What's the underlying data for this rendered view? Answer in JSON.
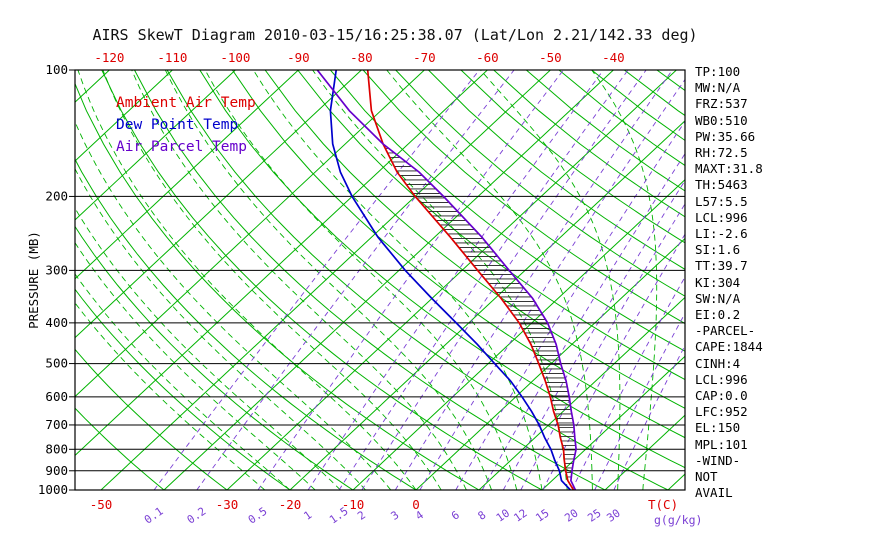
{
  "title": "AIRS SkewT Diagram 2010-03-15/16:25:38.07 (Lat/Lon 2.21/142.33 deg)",
  "colors": {
    "temp": "#dd0000",
    "dewpoint": "#0000cc",
    "parcel": "#6600cc",
    "green": "#00b300",
    "purple_lines": "#7a3fd4",
    "hatch": "#1a1a1a",
    "axis": "#000000",
    "title_text": "#101010",
    "background": "#ffffff"
  },
  "legend": {
    "ambient": "Ambient Air Temp",
    "dewpoint": "Dew Point Temp",
    "parcel": "Air Parcel Temp"
  },
  "stats": [
    "TP:100",
    "MW:N/A",
    "FRZ:537",
    "WB0:510",
    "PW:35.66",
    "RH:72.5",
    "MAXT:31.8",
    "TH:5463",
    "L57:5.5",
    "LCL:996",
    "LI:-2.6",
    "SI:1.6",
    "TT:39.7",
    "KI:304",
    "SW:N/A",
    "EI:0.2",
    "-PARCEL-",
    "CAPE:1844",
    "CINH:4",
    "LCL:996",
    "CAP:0.0",
    "LFC:952",
    "EL:150",
    "MPL:101",
    "-WIND-",
    "NOT",
    "AVAIL"
  ],
  "chart_data": {
    "type": "line",
    "subtype": "skew-t-log-p",
    "title": "AIRS SkewT Diagram 2010-03-15/16:25:38.07 (Lat/Lon 2.21/142.33 deg)",
    "xlabel": "T(C)",
    "ylabel": "PRESSURE (MB)",
    "x_axis": {
      "top_labels": [
        -120,
        -110,
        -100,
        -90,
        -80,
        -70,
        -60,
        -50,
        -40
      ],
      "bottom_temp_labels": [
        -50,
        -30,
        -20,
        -10,
        0
      ],
      "bottom_temp_unit": "T(C)",
      "mixing_labels": [
        0.1,
        0.2,
        0.5,
        1,
        1.5,
        2,
        3,
        4,
        6,
        8,
        10,
        12,
        15,
        20,
        25,
        30
      ],
      "mixing_unit": "g(g/kg)"
    },
    "y_axis": {
      "label": "PRESSURE (MB)",
      "ticks": [
        100,
        200,
        300,
        400,
        500,
        600,
        700,
        800,
        900,
        1000
      ],
      "scale": "log",
      "range_mb": [
        100,
        1000
      ]
    },
    "background_lines": {
      "isotherms_c": {
        "min": -120,
        "max": 40,
        "step": 10
      },
      "dry_adiabats_c": {
        "min": -40,
        "max": 200,
        "step": 10
      },
      "moist_adiabats_c": {
        "min": -24,
        "max": 36,
        "step": 4
      },
      "mixing_ratio_gkg": [
        0.1,
        0.2,
        0.5,
        1,
        1.5,
        2,
        3,
        4,
        6,
        8,
        10,
        12,
        15,
        20,
        25,
        30
      ]
    },
    "cape_hatch_mb": [
      952,
      150
    ],
    "series": [
      {
        "name": "Ambient Air Temp",
        "units": [
          "mb",
          "degC"
        ],
        "points": [
          [
            1000,
            25
          ],
          [
            950,
            22.5
          ],
          [
            900,
            20.5
          ],
          [
            850,
            18.5
          ],
          [
            800,
            16.5
          ],
          [
            750,
            14
          ],
          [
            700,
            11.5
          ],
          [
            650,
            8.5
          ],
          [
            600,
            5.5
          ],
          [
            550,
            2
          ],
          [
            500,
            -2
          ],
          [
            450,
            -6.5
          ],
          [
            400,
            -12
          ],
          [
            350,
            -19
          ],
          [
            300,
            -27.5
          ],
          [
            250,
            -37.5
          ],
          [
            200,
            -50
          ],
          [
            175,
            -57
          ],
          [
            150,
            -64
          ],
          [
            125,
            -71.5
          ],
          [
            100,
            -79
          ]
        ]
      },
      {
        "name": "Dew Point Temp",
        "units": [
          "mb",
          "degC"
        ],
        "points": [
          [
            1000,
            24.5
          ],
          [
            950,
            21.5
          ],
          [
            900,
            19.5
          ],
          [
            850,
            17
          ],
          [
            800,
            14.5
          ],
          [
            750,
            11.5
          ],
          [
            700,
            8.5
          ],
          [
            650,
            5
          ],
          [
            600,
            1
          ],
          [
            550,
            -3.5
          ],
          [
            500,
            -9
          ],
          [
            450,
            -15
          ],
          [
            400,
            -22
          ],
          [
            350,
            -30
          ],
          [
            300,
            -39
          ],
          [
            250,
            -49
          ],
          [
            200,
            -60
          ],
          [
            175,
            -66
          ],
          [
            150,
            -72
          ],
          [
            125,
            -78
          ],
          [
            100,
            -84
          ]
        ]
      },
      {
        "name": "Air Parcel Temp",
        "units": [
          "mb",
          "degC"
        ],
        "points": [
          [
            1000,
            25.3
          ],
          [
            950,
            23
          ],
          [
            900,
            21.5
          ],
          [
            850,
            20
          ],
          [
            800,
            18.5
          ],
          [
            750,
            16.3
          ],
          [
            700,
            14
          ],
          [
            650,
            11.3
          ],
          [
            600,
            8.5
          ],
          [
            550,
            5.3
          ],
          [
            500,
            1.5
          ],
          [
            450,
            -2.5
          ],
          [
            400,
            -7.5
          ],
          [
            350,
            -14
          ],
          [
            300,
            -22.5
          ],
          [
            250,
            -32.5
          ],
          [
            200,
            -45.5
          ],
          [
            175,
            -53.5
          ],
          [
            150,
            -64
          ],
          [
            125,
            -75
          ],
          [
            100,
            -87
          ]
        ]
      }
    ]
  }
}
